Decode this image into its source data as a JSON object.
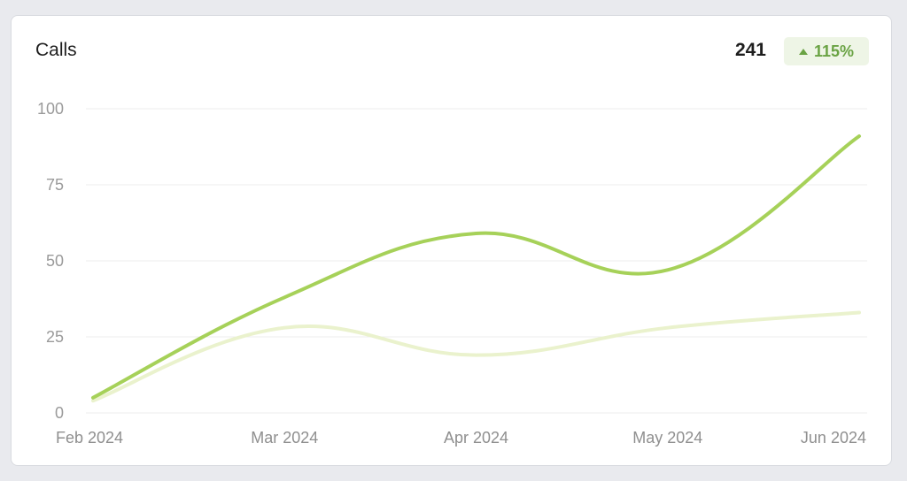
{
  "card": {
    "title": "Calls",
    "total": "241",
    "change": "115%"
  },
  "colors": {
    "current": "#a6d159",
    "previous": "#eaf2cd",
    "grid": "#eeeeee",
    "badge_bg": "#eef5e6",
    "badge_text": "#6aa344"
  },
  "icons": {
    "trend": "triangle-up-icon"
  },
  "chart_data": {
    "type": "line",
    "x": [
      "Feb 2024",
      "Mar 2024",
      "Apr 2024",
      "May 2024",
      "Jun 2024"
    ],
    "yticks": [
      "100",
      "75",
      "50",
      "25",
      "0"
    ],
    "ylim": [
      0,
      100
    ],
    "grid": true,
    "series": [
      {
        "values": [
          5,
          38,
          59,
          47,
          91
        ],
        "color": "#a6d159"
      },
      {
        "values": [
          4,
          28,
          19,
          28,
          33
        ],
        "color": "#eaf2cd"
      }
    ]
  }
}
